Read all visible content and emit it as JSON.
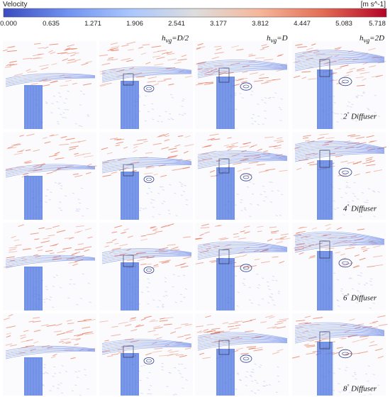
{
  "colorbar": {
    "title": "Velocity",
    "unit": "[m s^-1]",
    "ticks": [
      "0.000",
      "0.635",
      "1.271",
      "1.906",
      "2.541",
      "3.177",
      "3.812",
      "4.447",
      "5.083",
      "5.718"
    ],
    "colors": [
      "#3b4cc0",
      "#7092f1",
      "#aac7fd",
      "#dddddd",
      "#f6b79b",
      "#e36d55",
      "#b40426"
    ]
  },
  "columns": [
    {
      "label_main": "h",
      "label_sub": "vg",
      "label_rest": "=D/2"
    },
    {
      "label_main": "h",
      "label_sub": "vg",
      "label_rest": "=D"
    },
    {
      "label_main": "h",
      "label_sub": "vg",
      "label_rest": "=2D"
    }
  ],
  "rows": [
    {
      "angle": "2",
      "degree": "°",
      "text": " Diffuser"
    },
    {
      "angle": "4",
      "degree": "°",
      "text": " Diffuser"
    },
    {
      "angle": "6",
      "degree": "°",
      "text": " Diffuser"
    },
    {
      "angle": "8",
      "degree": "°",
      "text": " Diffuser"
    }
  ]
}
